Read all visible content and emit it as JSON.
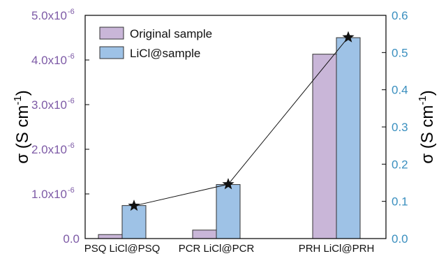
{
  "colors": {
    "original": "#c9b6d8",
    "licl": "#9ec2e6",
    "left_axis": "#7d5aa6",
    "right_axis": "#3a8fbf",
    "star": "#111111"
  },
  "chart_data": {
    "type": "bar",
    "categories": [
      "PSQ LiCl@PSQ",
      "PCR LiCl@PCR",
      "PRH LiCl@PRH"
    ],
    "series": [
      {
        "name": "Original sample",
        "axis": "left",
        "values": [
          9e-08,
          1.9e-07,
          4.13e-06
        ]
      },
      {
        "name": "LiCl@sample",
        "axis": "left",
        "values": [
          7.4e-07,
          1.21e-06,
          4.5e-06
        ]
      }
    ],
    "line_series": {
      "axis": "right",
      "marker": "star",
      "values": [
        0.088,
        0.146,
        0.541
      ]
    },
    "ylim_left": [
      0,
      5e-06
    ],
    "ylim_right": [
      0,
      0.6
    ],
    "left_ticks": [
      {
        "v": 0,
        "label": "0.0",
        "exp": ""
      },
      {
        "v": 1e-06,
        "label": "1.0x10",
        "exp": "-6"
      },
      {
        "v": 2e-06,
        "label": "2.0x10",
        "exp": "-6"
      },
      {
        "v": 3e-06,
        "label": "3.0x10",
        "exp": "-6"
      },
      {
        "v": 4e-06,
        "label": "4.0x10",
        "exp": "-6"
      },
      {
        "v": 5e-06,
        "label": "5.0x10",
        "exp": "-6"
      }
    ],
    "right_ticks": [
      "0.0",
      "0.1",
      "0.2",
      "0.3",
      "0.4",
      "0.5",
      "0.6"
    ],
    "ylabel_left": {
      "main": "σ (S cm",
      "sup": "-1",
      "close": ")"
    },
    "ylabel_right": {
      "main": "σ (S cm",
      "sup": "-1",
      "close": ")"
    },
    "legend_position": "top-left"
  }
}
